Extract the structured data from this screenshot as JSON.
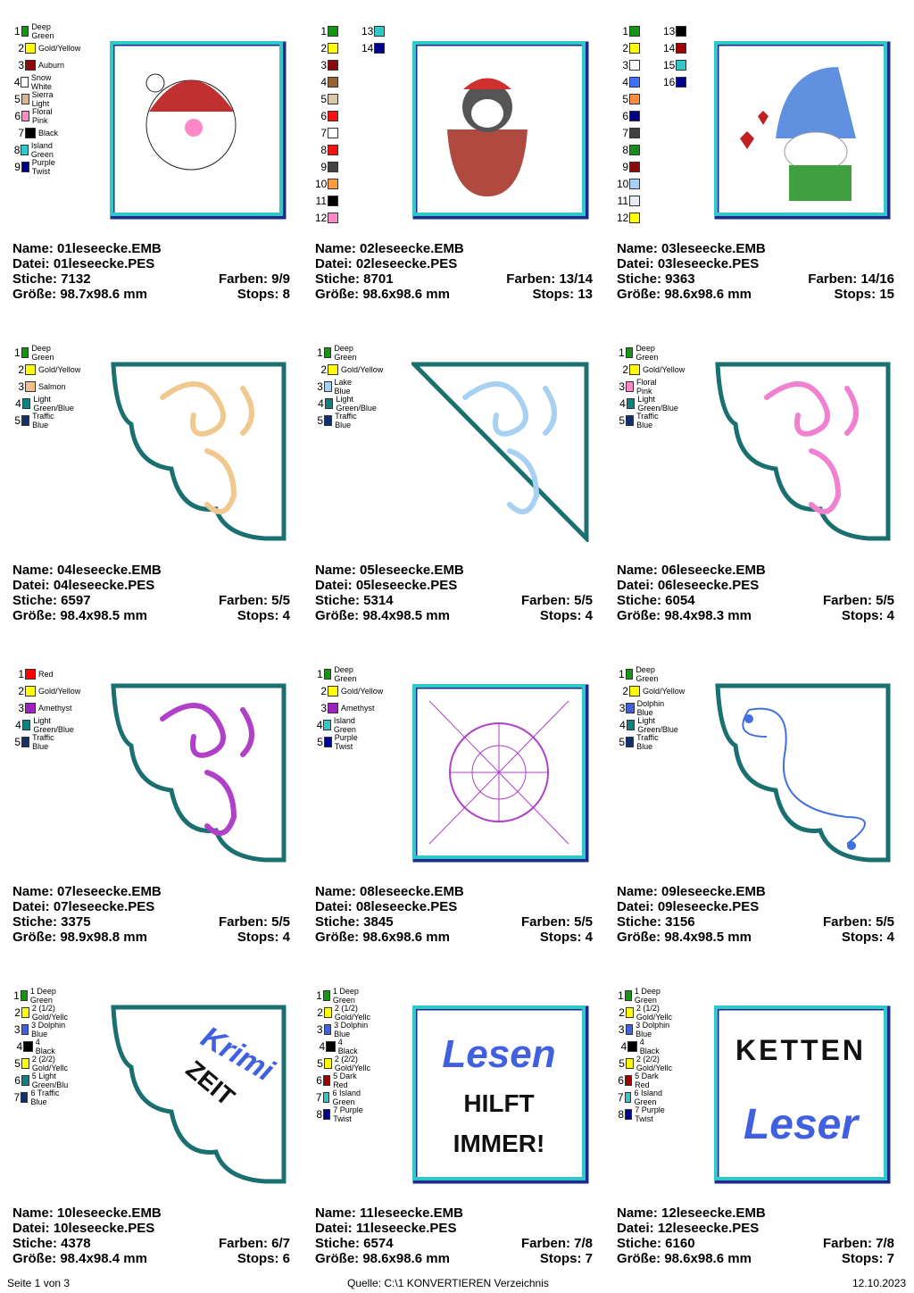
{
  "cells": [
    {
      "name": "Name: 01leseecke.EMB",
      "file": "Datei: 01leseecke.PES",
      "stitches": "Stiche: 7132",
      "colors_count": "Farben: 9/9",
      "size": "Größe: 98.7x98.6 mm",
      "stops": "Stops: 8",
      "frame": "square",
      "motif": "santa",
      "colors": [
        {
          "n": "1",
          "hex": "#159415",
          "label": "Deep Green"
        },
        {
          "n": "2",
          "hex": "#ffff00",
          "label": "Gold/Yellow"
        },
        {
          "n": "3",
          "hex": "#8b0a0a",
          "label": "Auburn"
        },
        {
          "n": "4",
          "hex": "#ffffff",
          "label": "Snow White"
        },
        {
          "n": "5",
          "hex": "#dbb591",
          "label": "Sierra Light"
        },
        {
          "n": "6",
          "hex": "#ff88c8",
          "label": "Floral Pink"
        },
        {
          "n": "7",
          "hex": "#000000",
          "label": "Black"
        },
        {
          "n": "8",
          "hex": "#30c8c8",
          "label": "Island Green"
        },
        {
          "n": "9",
          "hex": "#000090",
          "label": "Purple Twist"
        }
      ]
    },
    {
      "name": "Name: 02leseecke.EMB",
      "file": "Datei: 02leseecke.PES",
      "stitches": "Stiche: 8701",
      "colors_count": "Farben: 13/14",
      "size": "Größe: 98.6x98.6 mm",
      "stops": "Stops: 13",
      "frame": "square",
      "motif": "penguin",
      "colors": [
        {
          "n": "1",
          "hex": "#159415"
        },
        {
          "n": "2",
          "hex": "#ffff00"
        },
        {
          "n": "3",
          "hex": "#8b0a0a"
        },
        {
          "n": "4",
          "hex": "#9a6030"
        },
        {
          "n": "5",
          "hex": "#dcc6a8"
        },
        {
          "n": "6",
          "hex": "#ff1010"
        },
        {
          "n": "7",
          "hex": "#ffffff"
        },
        {
          "n": "8",
          "hex": "#ff1010"
        },
        {
          "n": "9",
          "hex": "#444444"
        },
        {
          "n": "10",
          "hex": "#ff9a40"
        },
        {
          "n": "11",
          "hex": "#000000"
        },
        {
          "n": "12",
          "hex": "#ff88c8"
        },
        {
          "n": "13",
          "hex": "#30c8c8"
        },
        {
          "n": "14",
          "hex": "#000090"
        }
      ]
    },
    {
      "name": "Name: 03leseecke.EMB",
      "file": "Datei: 03leseecke.PES",
      "stitches": "Stiche: 9363",
      "colors_count": "Farben: 14/16",
      "size": "Größe: 98.6x98.6 mm",
      "stops": "Stops: 15",
      "frame": "square",
      "motif": "gnome",
      "colors": [
        {
          "n": "1",
          "hex": "#159415"
        },
        {
          "n": "2",
          "hex": "#ffff00"
        },
        {
          "n": "3",
          "hex": "#ffffff"
        },
        {
          "n": "4",
          "hex": "#4070ff"
        },
        {
          "n": "5",
          "hex": "#ff8a40"
        },
        {
          "n": "6",
          "hex": "#000080"
        },
        {
          "n": "7",
          "hex": "#404040"
        },
        {
          "n": "8",
          "hex": "#1a8a1a"
        },
        {
          "n": "9",
          "hex": "#8b0a0a"
        },
        {
          "n": "10",
          "hex": "#a8d0ff"
        },
        {
          "n": "11",
          "hex": "#e8eef8"
        },
        {
          "n": "12",
          "hex": "#ffff00"
        },
        {
          "n": "13",
          "hex": "#000000"
        },
        {
          "n": "14",
          "hex": "#a00000"
        },
        {
          "n": "15",
          "hex": "#30c8c8"
        },
        {
          "n": "16",
          "hex": "#000090"
        }
      ]
    },
    {
      "name": "Name: 04leseecke.EMB",
      "file": "Datei: 04leseecke.PES",
      "stitches": "Stiche: 6597",
      "colors_count": "Farben: 5/5",
      "size": "Größe: 98.4x98.5 mm",
      "stops": "Stops: 4",
      "frame": "scallop",
      "motif": "swirl",
      "motif_color": "#f0c890",
      "colors": [
        {
          "n": "1",
          "hex": "#159415",
          "label": "Deep Green"
        },
        {
          "n": "2",
          "hex": "#ffff00",
          "label": "Gold/Yellow"
        },
        {
          "n": "3",
          "hex": "#f0c090",
          "label": "Salmon"
        },
        {
          "n": "4",
          "hex": "#108080",
          "label": "Light Green/Blue"
        },
        {
          "n": "5",
          "hex": "#103070",
          "label": "Traffic Blue"
        }
      ]
    },
    {
      "name": "Name: 05leseecke.EMB",
      "file": "Datei: 05leseecke.PES",
      "stitches": "Stiche: 5314",
      "colors_count": "Farben: 5/5",
      "size": "Größe: 98.4x98.5 mm",
      "stops": "Stops: 4",
      "frame": "diagonal",
      "motif": "swirl",
      "motif_color": "#a8d0f0",
      "colors": [
        {
          "n": "1",
          "hex": "#159415",
          "label": "Deep Green"
        },
        {
          "n": "2",
          "hex": "#ffff00",
          "label": "Gold/Yellow"
        },
        {
          "n": "3",
          "hex": "#a8d0f0",
          "label": "Lake Blue"
        },
        {
          "n": "4",
          "hex": "#108080",
          "label": "Light Green/Blue"
        },
        {
          "n": "5",
          "hex": "#103070",
          "label": "Traffic Blue"
        }
      ]
    },
    {
      "name": "Name: 06leseecke.EMB",
      "file": "Datei: 06leseecke.PES",
      "stitches": "Stiche: 6054",
      "colors_count": "Farben: 5/5",
      "size": "Größe: 98.4x98.3 mm",
      "stops": "Stops: 4",
      "frame": "scallop",
      "motif": "swirl",
      "motif_color": "#f080d0",
      "colors": [
        {
          "n": "1",
          "hex": "#159415",
          "label": "Deep Green"
        },
        {
          "n": "2",
          "hex": "#ffff00",
          "label": "Gold/Yellow"
        },
        {
          "n": "3",
          "hex": "#ff88c8",
          "label": "Floral Pink"
        },
        {
          "n": "4",
          "hex": "#108080",
          "label": "Light Green/Blue"
        },
        {
          "n": "5",
          "hex": "#103070",
          "label": "Traffic Blue"
        }
      ]
    },
    {
      "name": "Name: 07leseecke.EMB",
      "file": "Datei: 07leseecke.PES",
      "stitches": "Stiche: 3375",
      "colors_count": "Farben: 5/5",
      "size": "Größe: 98.9x98.8 mm",
      "stops": "Stops: 4",
      "frame": "scallop",
      "motif": "swirl",
      "motif_color": "#b040c8",
      "colors": [
        {
          "n": "1",
          "hex": "#ff0000",
          "label": "Red"
        },
        {
          "n": "2",
          "hex": "#ffff00",
          "label": "Gold/Yellow"
        },
        {
          "n": "3",
          "hex": "#a020c0",
          "label": "Amethyst"
        },
        {
          "n": "4",
          "hex": "#108080",
          "label": "Light Green/Blue"
        },
        {
          "n": "5",
          "hex": "#103070",
          "label": "Traffic Blue"
        }
      ]
    },
    {
      "name": "Name: 08leseecke.EMB",
      "file": "Datei: 08leseecke.PES",
      "stitches": "Stiche: 3845",
      "colors_count": "Farben: 5/5",
      "size": "Größe: 98.6x98.6 mm",
      "stops": "Stops: 4",
      "frame": "square",
      "motif": "web",
      "motif_color": "#b040c8",
      "colors": [
        {
          "n": "1",
          "hex": "#159415",
          "label": "Deep Green"
        },
        {
          "n": "2",
          "hex": "#ffff00",
          "label": "Gold/Yellow"
        },
        {
          "n": "3",
          "hex": "#a020c0",
          "label": "Amethyst"
        },
        {
          "n": "4",
          "hex": "#30c8c8",
          "label": "Island Green"
        },
        {
          "n": "5",
          "hex": "#000090",
          "label": "Purple Twist"
        }
      ]
    },
    {
      "name": "Name: 09leseecke.EMB",
      "file": "Datei: 09leseecke.PES",
      "stitches": "Stiche: 3156",
      "colors_count": "Farben: 5/5",
      "size": "Größe: 98.4x98.5 mm",
      "stops": "Stops: 4",
      "frame": "scallop",
      "motif": "knot",
      "motif_color": "#4070e0",
      "colors": [
        {
          "n": "1",
          "hex": "#159415",
          "label": "Deep Green"
        },
        {
          "n": "2",
          "hex": "#ffff00",
          "label": "Gold/Yellow"
        },
        {
          "n": "3",
          "hex": "#4060e0",
          "label": "Dolphin Blue"
        },
        {
          "n": "4",
          "hex": "#108080",
          "label": "Light Green/Blue"
        },
        {
          "n": "5",
          "hex": "#103070",
          "label": "Traffic Blue"
        }
      ]
    },
    {
      "name": "Name: 10leseecke.EMB",
      "file": "Datei: 10leseecke.PES",
      "stitches": "Stiche: 4378",
      "colors_count": "Farben: 6/7",
      "size": "Größe: 98.4x98.4 mm",
      "stops": "Stops: 6",
      "frame": "scallop",
      "motif": "text",
      "text_lines": [
        "Krimi",
        "ZEIT"
      ],
      "colors": [
        {
          "n": "1",
          "hex": "#159415",
          "label": "1 Deep Green"
        },
        {
          "n": "2",
          "hex": "#ffff00",
          "label": "2 (1/2) Gold/Yellc"
        },
        {
          "n": "3",
          "hex": "#4060e0",
          "label": "3 Dolphin Blue"
        },
        {
          "n": "4",
          "hex": "#000000",
          "label": "4 Black"
        },
        {
          "n": "5",
          "hex": "#ffff00",
          "label": "2 (2/2) Gold/Yellc"
        },
        {
          "n": "6",
          "hex": "#108080",
          "label": "5 Light Green/Blu"
        },
        {
          "n": "7",
          "hex": "#103070",
          "label": "6 Traffic Blue"
        }
      ]
    },
    {
      "name": "Name: 11leseecke.EMB",
      "file": "Datei: 11leseecke.PES",
      "stitches": "Stiche: 6574",
      "colors_count": "Farben: 7/8",
      "size": "Größe: 98.6x98.6 mm",
      "stops": "Stops: 7",
      "frame": "square",
      "motif": "text",
      "text_lines": [
        "Lesen",
        "HILFT",
        "IMMER!"
      ],
      "colors": [
        {
          "n": "1",
          "hex": "#159415",
          "label": "1 Deep Green"
        },
        {
          "n": "2",
          "hex": "#ffff00",
          "label": "2 (1/2) Gold/Yellc"
        },
        {
          "n": "3",
          "hex": "#4060e0",
          "label": "3 Dolphin Blue"
        },
        {
          "n": "4",
          "hex": "#000000",
          "label": "4 Black"
        },
        {
          "n": "5",
          "hex": "#ffff00",
          "label": "2 (2/2) Gold/Yellc"
        },
        {
          "n": "6",
          "hex": "#a00000",
          "label": "5 Dark Red"
        },
        {
          "n": "7",
          "hex": "#30c8c8",
          "label": "6 Island Green"
        },
        {
          "n": "8",
          "hex": "#000090",
          "label": "7 Purple Twist"
        }
      ]
    },
    {
      "name": "Name: 12leseecke.EMB",
      "file": "Datei: 12leseecke.PES",
      "stitches": "Stiche: 6160",
      "colors_count": "Farben: 7/8",
      "size": "Größe: 98.6x98.6 mm",
      "stops": "Stops: 7",
      "frame": "square",
      "motif": "text",
      "text_lines": [
        "KETTEN",
        "Leser"
      ],
      "colors": [
        {
          "n": "1",
          "hex": "#159415",
          "label": "1 Deep Green"
        },
        {
          "n": "2",
          "hex": "#ffff00",
          "label": "2 (1/2) Gold/Yellc"
        },
        {
          "n": "3",
          "hex": "#4060e0",
          "label": "3 Dolphin Blue"
        },
        {
          "n": "4",
          "hex": "#000000",
          "label": "4 Black"
        },
        {
          "n": "5",
          "hex": "#ffff00",
          "label": "2 (2/2) Gold/Yellc"
        },
        {
          "n": "6",
          "hex": "#a00000",
          "label": "5 Dark Red"
        },
        {
          "n": "7",
          "hex": "#30c8c8",
          "label": "6 Island Green"
        },
        {
          "n": "8",
          "hex": "#000090",
          "label": "7 Purple Twist"
        }
      ]
    }
  ],
  "footer": {
    "page": "Seite 1 von 3",
    "source": "Quelle: C:\\1 KONVERTIEREN Verzeichnis",
    "date": "12.10.2023"
  }
}
